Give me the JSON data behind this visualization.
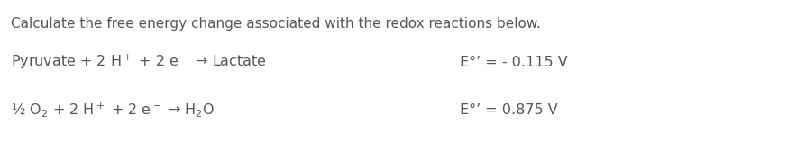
{
  "background_color": "#ffffff",
  "title_text": "Calculate the free energy change associated with the redox reactions below.",
  "title_fontsize": 11.0,
  "title_color": "#555555",
  "line1_left_text": "Pyruvate + 2 H$^+$ + 2 e$^-$ → Lactate",
  "line1_right_text": "E°’ = - 0.115 V",
  "line2_left_text": "½ O$_2$ + 2 H$^+$ + 2 e$^-$ → H$_2$O",
  "line2_right_text": "E°’ = 0.875 V",
  "line_fontsize": 11.5,
  "line_color": "#555555",
  "fig_width": 8.94,
  "fig_height": 1.87,
  "dpi": 100
}
